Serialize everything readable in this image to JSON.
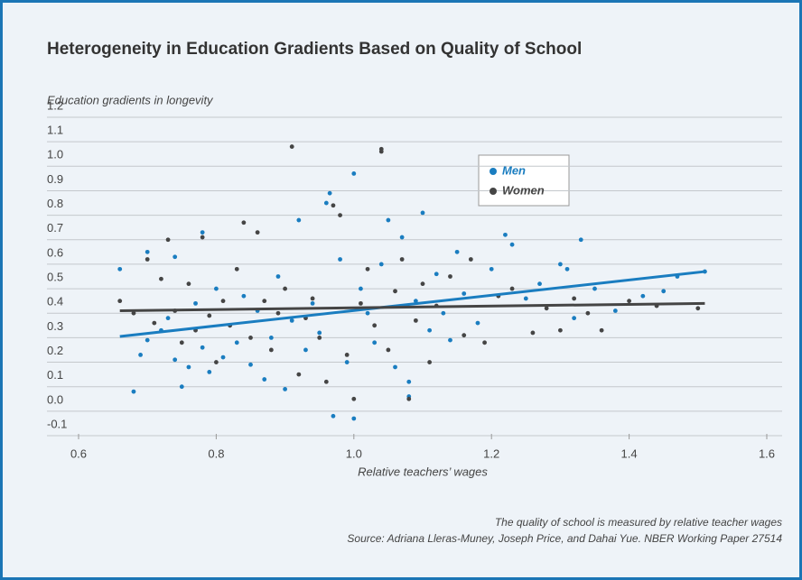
{
  "chart_data": {
    "type": "scatter",
    "title": "Heterogeneity in Education Gradients Based on Quality of School",
    "y_label": "Education gradients in longevity",
    "x_label": "Relative teachers’ wages",
    "notes": [
      "The quality of school is measured by relative teacher wages",
      "Source: Adriana Lleras-Muney, Joseph Price, and Dahai Yue. NBER Working Paper 27514"
    ],
    "xlim": [
      0.6,
      1.6
    ],
    "xticks": [
      0.6,
      0.8,
      {
        "value": 1,
        "label": "1.0"
      },
      1.2,
      1.4,
      1.6
    ],
    "ylim": [
      -0.1,
      1.2
    ],
    "yticks": [
      {
        "value": -0.1,
        "label": "-0.1"
      },
      {
        "value": 0,
        "label": "0.0"
      },
      0.1,
      0.2,
      0.3,
      0.4,
      0.5,
      0.6,
      0.7,
      0.8,
      0.9,
      {
        "value": 1,
        "label": "1.0"
      },
      1.1,
      1.2
    ],
    "grid": true,
    "series": [
      {
        "name": "Men",
        "color": "#1a7dc0",
        "x": [
          0.66,
          0.68,
          0.69,
          0.7,
          0.7,
          0.72,
          0.73,
          0.74,
          0.74,
          0.75,
          0.76,
          0.77,
          0.78,
          0.78,
          0.79,
          0.8,
          0.81,
          0.82,
          0.83,
          0.84,
          0.85,
          0.86,
          0.87,
          0.88,
          0.89,
          0.9,
          0.91,
          0.92,
          0.93,
          0.94,
          0.95,
          0.96,
          0.965,
          0.97,
          0.98,
          0.99,
          1.0,
          1.0,
          1.01,
          1.02,
          1.03,
          1.04,
          1.05,
          1.06,
          1.07,
          1.08,
          1.08,
          1.09,
          1.1,
          1.11,
          1.12,
          1.13,
          1.14,
          1.15,
          1.16,
          1.18,
          1.2,
          1.22,
          1.23,
          1.25,
          1.27,
          1.3,
          1.31,
          1.32,
          1.33,
          1.35,
          1.38,
          1.42,
          1.45,
          1.47,
          1.51
        ],
        "values": [
          0.58,
          0.08,
          0.23,
          0.65,
          0.29,
          0.33,
          0.38,
          0.63,
          0.21,
          0.1,
          0.18,
          0.44,
          0.73,
          0.26,
          0.16,
          0.5,
          0.22,
          0.35,
          0.28,
          0.47,
          0.19,
          0.41,
          0.13,
          0.3,
          0.55,
          0.09,
          0.37,
          0.78,
          0.25,
          0.44,
          0.32,
          0.85,
          0.89,
          -0.02,
          0.62,
          0.2,
          0.97,
          -0.03,
          0.5,
          0.4,
          0.28,
          0.6,
          0.78,
          0.18,
          0.71,
          0.12,
          0.06,
          0.45,
          0.81,
          0.33,
          0.56,
          0.4,
          0.29,
          0.65,
          0.48,
          0.36,
          0.58,
          0.72,
          0.68,
          0.46,
          0.52,
          0.6,
          0.58,
          0.38,
          0.7,
          0.5,
          0.41,
          0.47,
          0.49,
          0.55,
          0.57
        ],
        "trend": {
          "x": [
            0.66,
            1.51
          ],
          "values": [
            0.305,
            0.57
          ]
        }
      },
      {
        "name": "Women",
        "color": "#454545",
        "x": [
          0.66,
          0.68,
          0.7,
          0.71,
          0.72,
          0.73,
          0.74,
          0.75,
          0.76,
          0.77,
          0.78,
          0.79,
          0.8,
          0.81,
          0.82,
          0.83,
          0.84,
          0.85,
          0.86,
          0.87,
          0.88,
          0.89,
          0.9,
          0.91,
          0.92,
          0.93,
          0.94,
          0.95,
          0.96,
          0.97,
          0.98,
          0.99,
          1.0,
          1.01,
          1.02,
          1.03,
          1.04,
          1.04,
          1.05,
          1.06,
          1.07,
          1.08,
          1.09,
          1.1,
          1.11,
          1.12,
          1.14,
          1.16,
          1.17,
          1.19,
          1.21,
          1.23,
          1.26,
          1.28,
          1.3,
          1.32,
          1.34,
          1.36,
          1.4,
          1.44,
          1.5
        ],
        "values": [
          0.45,
          0.4,
          0.62,
          0.36,
          0.54,
          0.7,
          0.41,
          0.28,
          0.52,
          0.33,
          0.71,
          0.39,
          0.2,
          0.45,
          0.35,
          0.58,
          0.77,
          0.3,
          0.73,
          0.45,
          0.25,
          0.4,
          0.5,
          1.08,
          0.15,
          0.38,
          0.46,
          0.3,
          0.12,
          0.84,
          0.8,
          0.23,
          0.05,
          0.44,
          0.58,
          0.35,
          1.07,
          1.06,
          0.25,
          0.49,
          0.62,
          0.05,
          0.37,
          0.52,
          0.2,
          0.43,
          0.55,
          0.31,
          0.62,
          0.28,
          0.47,
          0.5,
          0.32,
          0.42,
          0.33,
          0.46,
          0.4,
          0.33,
          0.45,
          0.43,
          0.42
        ],
        "trend": {
          "x": [
            0.66,
            1.51
          ],
          "values": [
            0.41,
            0.44
          ]
        }
      }
    ]
  }
}
